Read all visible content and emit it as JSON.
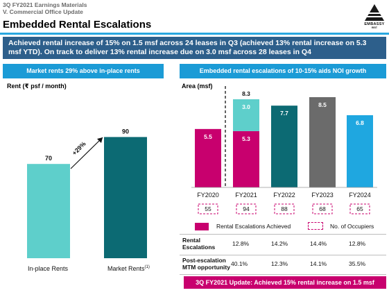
{
  "header": {
    "line1": "3Q FY2021 Earnings Materials",
    "line2": "V. Commercial Office Update",
    "title": "Embedded Rental Escalations",
    "logo_text": "EMBASSY",
    "logo_sub": "REIT"
  },
  "banner": "Achieved rental increase of 15% on 1.5 msf across 24 leases in Q3 (achieved 13% rental increase on 5.3 msf YTD). On track to deliver 13% rental increase due on 3.0 msf across 28 leases in Q4",
  "left_panel": {
    "heading": "Market rents 29% above in-place rents",
    "unit_label": "Rent (₹ psf / month)",
    "growth_label": "+29%",
    "sup": "(1)"
  },
  "right_panel": {
    "heading": "Embedded rental escalations of 10-15% aids NOI growth",
    "unit_label": "Area (msf)",
    "legend_escalations": "Rental Escalations Achieved",
    "legend_occupiers": "No. of Occupiers",
    "rows": [
      {
        "label": "Rental Escalations",
        "values": [
          "12.8%",
          "14.2%",
          "14.4%",
          "12.8%"
        ]
      },
      {
        "label": "Post-escalation MTM opportunity",
        "values": [
          "40.1%",
          "12.3%",
          "14.1%",
          "35.5%"
        ]
      }
    ]
  },
  "update_bar": "3Q FY2021 Update: Achieved 15% rental increase on 1.5 msf",
  "colors": {
    "teal_light": "#5ecfcb",
    "teal_dark": "#0c6a73",
    "magenta": "#c8006e",
    "grey": "#6b6b6b",
    "sky": "#1fa7e0",
    "banner": "#2d5f8b",
    "panel_heading": "#1b9bd6"
  },
  "chart_data": [
    {
      "type": "bar",
      "categories": [
        "In-place Rents",
        "Market Rents"
      ],
      "values": [
        70,
        90
      ],
      "ylabel": "Rent (₹ psf / month)",
      "ylim": [
        0,
        100
      ],
      "annotations": [
        "+29%"
      ]
    },
    {
      "type": "bar",
      "categories": [
        "FY2020",
        "FY2021",
        "FY2022",
        "FY2023",
        "FY2024"
      ],
      "ylabel": "Area (msf)",
      "ylim": [
        0,
        9
      ],
      "stacked": true,
      "bars": [
        {
          "category": "FY2020",
          "total": 5.5,
          "segments": [
            {
              "value": 5.5,
              "color": "#c8006e",
              "label": "5.5"
            }
          ]
        },
        {
          "category": "FY2021",
          "total": 8.3,
          "segments": [
            {
              "value": 5.3,
              "color": "#c8006e",
              "label": "5.3"
            },
            {
              "value": 3.0,
              "color": "#5ecfcb",
              "label": "3.0"
            }
          ]
        },
        {
          "category": "FY2022",
          "total": 7.7,
          "segments": [
            {
              "value": 7.7,
              "color": "#0c6a73",
              "label": "7.7"
            }
          ]
        },
        {
          "category": "FY2023",
          "total": 8.5,
          "segments": [
            {
              "value": 8.5,
              "color": "#6b6b6b",
              "label": "8.5"
            }
          ]
        },
        {
          "category": "FY2024",
          "total": 6.8,
          "segments": [
            {
              "value": 6.8,
              "color": "#1fa7e0",
              "label": "6.8"
            }
          ]
        }
      ],
      "total_labels": {
        "FY2021": "8.3"
      },
      "occupiers": [
        55,
        94,
        88,
        68,
        65
      ]
    }
  ]
}
